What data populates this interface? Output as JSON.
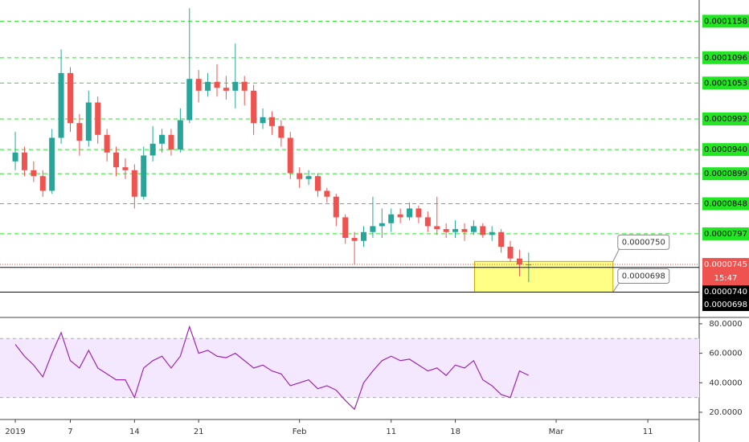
{
  "chart_data": [
    {
      "type": "candlestick",
      "x": [
        0,
        1,
        2,
        3,
        4,
        5,
        6,
        7,
        8,
        9,
        10,
        11,
        12,
        13,
        14,
        15,
        16,
        17,
        18,
        19,
        20,
        21,
        22,
        23,
        24,
        25,
        26,
        27,
        28,
        29,
        30,
        31,
        32,
        33,
        34,
        35,
        36,
        37,
        38,
        39,
        40,
        41,
        42,
        43,
        44,
        45,
        46,
        47,
        48,
        49,
        50,
        51,
        52,
        53,
        54,
        55,
        56
      ],
      "open": [
        9.2e-05,
        9.35e-05,
        9.05e-05,
        8.95e-05,
        8.7e-05,
        9.6e-05,
        0.000107,
        9.85e-05,
        9.55e-05,
        0.000102,
        9.65e-05,
        9.35e-05,
        9.1e-05,
        9.05e-05,
        8.6e-05,
        9.3e-05,
        9.5e-05,
        9.65e-05,
        9.4e-05,
        9.9e-05,
        0.000106,
        0.000104,
        0.0001055,
        0.0001045,
        0.000104,
        0.0001055,
        0.000104,
        9.85e-05,
        9.95e-05,
        9.8e-05,
        9.6e-05,
        9e-05,
        8.9e-05,
        8.95e-05,
        8.7e-05,
        8.6e-05,
        8.25e-05,
        7.9e-05,
        7.85e-05,
        8e-05,
        8.1e-05,
        8.15e-05,
        8.3e-05,
        8.25e-05,
        8.4e-05,
        8.25e-05,
        8.1e-05,
        8.05e-05,
        8e-05,
        8.05e-05,
        8e-05,
        8.1e-05,
        7.95e-05,
        8e-05,
        7.75e-05,
        7.55e-05,
        7.45e-05
      ],
      "high": [
        9.7e-05,
        9.45e-05,
        9.2e-05,
        9.05e-05,
        9.75e-05,
        0.000111,
        0.000108,
        0.0001,
        0.000104,
        0.000103,
        9.75e-05,
        9.45e-05,
        9.25e-05,
        9.15e-05,
        9.45e-05,
        9.8e-05,
        9.75e-05,
        9.75e-05,
        0.000101,
        0.000118,
        0.0001075,
        0.000107,
        0.0001085,
        0.0001065,
        0.000112,
        0.0001065,
        0.000105,
        0.000101,
        0.0001005,
        9.9e-05,
        9.7e-05,
        9.1e-05,
        9.05e-05,
        9e-05,
        8.75e-05,
        8.65e-05,
        8.3e-05,
        8e-05,
        8.1e-05,
        8.6e-05,
        8.4e-05,
        8.4e-05,
        8.4e-05,
        8.5e-05,
        8.45e-05,
        8.35e-05,
        8.6e-05,
        8.15e-05,
        8.2e-05,
        8.15e-05,
        8.2e-05,
        8.15e-05,
        8.1e-05,
        8.05e-05,
        7.85e-05,
        7.7e-05,
        7.65e-05
      ],
      "low": [
        9.05e-05,
        8.95e-05,
        8.85e-05,
        8.6e-05,
        8.65e-05,
        9.5e-05,
        9.7e-05,
        9.3e-05,
        9.45e-05,
        9.5e-05,
        9.2e-05,
        8.95e-05,
        8.9e-05,
        8.4e-05,
        8.55e-05,
        9.2e-05,
        9.35e-05,
        9.3e-05,
        9.35e-05,
        9.85e-05,
        0.000102,
        0.000103,
        0.000103,
        0.0001025,
        0.000101,
        0.0001015,
        9.65e-05,
        9.75e-05,
        9.65e-05,
        9.45e-05,
        8.9e-05,
        8.75e-05,
        8.8e-05,
        8.6e-05,
        8.5e-05,
        8.1e-05,
        7.8e-05,
        7.45e-05,
        7.75e-05,
        7.9e-05,
        7.9e-05,
        8e-05,
        8.15e-05,
        8.2e-05,
        8.15e-05,
        8e-05,
        7.95e-05,
        7.9e-05,
        7.9e-05,
        7.85e-05,
        7.95e-05,
        7.9e-05,
        7.85e-05,
        7.65e-05,
        7.5e-05,
        7.25e-05,
        7.15e-05
      ],
      "close": [
        9.35e-05,
        9.05e-05,
        8.95e-05,
        8.7e-05,
        9.6e-05,
        0.000107,
        9.85e-05,
        9.55e-05,
        0.000102,
        9.65e-05,
        9.35e-05,
        9.1e-05,
        9.05e-05,
        8.6e-05,
        9.3e-05,
        9.5e-05,
        9.65e-05,
        9.4e-05,
        9.9e-05,
        0.000106,
        0.000104,
        0.0001055,
        0.0001045,
        0.000104,
        0.0001055,
        0.000104,
        9.85e-05,
        9.95e-05,
        9.8e-05,
        9.6e-05,
        9e-05,
        8.9e-05,
        8.95e-05,
        8.7e-05,
        8.6e-05,
        8.25e-05,
        7.9e-05,
        7.85e-05,
        8e-05,
        8.1e-05,
        8.15e-05,
        8.3e-05,
        8.25e-05,
        8.4e-05,
        8.25e-05,
        8.1e-05,
        8.05e-05,
        8e-05,
        8.05e-05,
        8e-05,
        8.1e-05,
        7.95e-05,
        8e-05,
        7.75e-05,
        7.55e-05,
        7.45e-05,
        7.45e-05
      ],
      "up_color": "#26a69a",
      "down_color": "#ef5350",
      "xlim": [
        -1.67,
        74.6
      ],
      "ylim": [
        6.55e-05,
        0.0001194
      ],
      "xticks": [
        {
          "value": 0,
          "label": "2019"
        },
        {
          "value": 6,
          "label": "7"
        },
        {
          "value": 13,
          "label": "14"
        },
        {
          "value": 20,
          "label": "21"
        },
        {
          "value": 31,
          "label": "Feb"
        },
        {
          "value": 41,
          "label": "11"
        },
        {
          "value": 48,
          "label": "18"
        },
        {
          "value": 59,
          "label": "Mar"
        },
        {
          "value": 69,
          "label": "11"
        }
      ],
      "levels": [
        0.0001158,
        {
          "value": 0.0001096,
          "label": "0.0001096"
        },
        0.0001053,
        9.92e-05,
        {
          "value": 9.4e-05,
          "label": "0.0000940"
        },
        8.99e-05,
        8.48e-05,
        7.97e-05
      ],
      "level_color": "#22e622",
      "last_price": 7.45e-05,
      "countdown": "15:47",
      "lines": [
        {
          "value": 7.4e-05,
          "label": "0.0000740"
        },
        6.98e-05
      ],
      "box": {
        "top": {
          "value": 7.5e-05,
          "label": "0.0000750"
        },
        "bottom": 6.98e-05,
        "x": [
          50.1,
          65.2
        ],
        "color": "#ffff66"
      }
    },
    {
      "type": "line",
      "values": [
        66,
        58,
        52,
        44,
        60,
        74,
        55,
        50,
        62,
        50,
        46,
        42,
        42,
        30,
        50,
        55,
        58,
        50,
        58,
        78,
        60,
        62,
        58,
        57,
        60,
        55,
        50,
        52,
        48,
        46,
        38,
        40,
        42,
        36,
        38,
        35,
        28,
        22,
        40,
        48,
        55,
        58,
        55,
        56,
        52,
        48,
        50,
        45,
        52,
        50,
        55,
        42,
        38,
        32,
        30,
        48,
        45
      ],
      "color": "#9c27b0",
      "ylim": [
        15.1,
        84.3
      ],
      "yticks": [
        {
          "value": 80,
          "label": "80.0000"
        },
        {
          "value": 60,
          "label": "60.0000"
        },
        {
          "value": 40,
          "label": "40.0000"
        },
        {
          "value": 20,
          "label": "20.0000"
        }
      ],
      "bands": [
        70,
        30
      ],
      "band_color": "#f3e8ff"
    }
  ]
}
